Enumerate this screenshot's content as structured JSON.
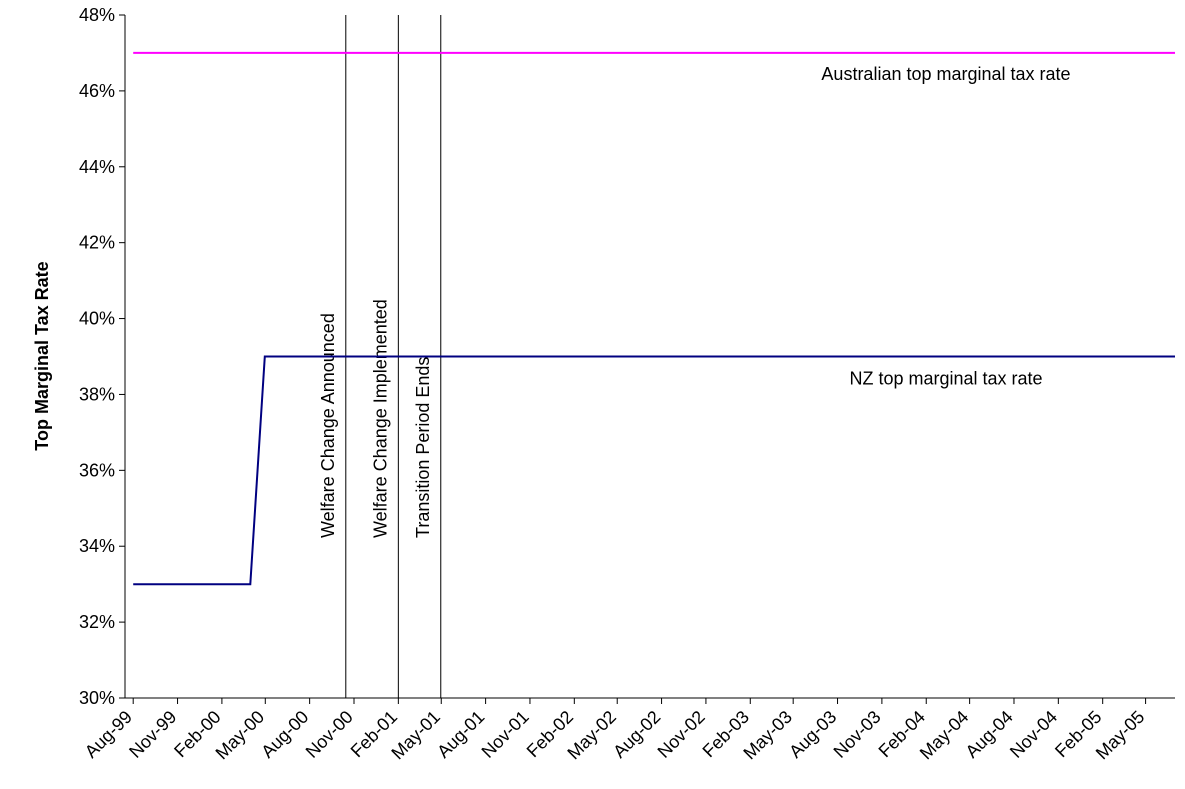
{
  "chart_data": {
    "type": "line",
    "ylabel": "Top Marginal Tax Rate",
    "xlabel": "",
    "title": "",
    "ylim": [
      30,
      48
    ],
    "y_ticks": [
      "30%",
      "32%",
      "34%",
      "36%",
      "38%",
      "40%",
      "42%",
      "44%",
      "46%",
      "48%"
    ],
    "y_tick_values": [
      30,
      32,
      34,
      36,
      38,
      40,
      42,
      44,
      46,
      48
    ],
    "x_ticks": [
      "Aug-99",
      "Nov-99",
      "Feb-00",
      "May-00",
      "Aug-00",
      "Nov-00",
      "Feb-01",
      "May-01",
      "Aug-01",
      "Nov-01",
      "Feb-02",
      "May-02",
      "Aug-02",
      "Nov-02",
      "Feb-03",
      "May-03",
      "Aug-03",
      "Nov-03",
      "Feb-04",
      "May-04",
      "Aug-04",
      "Nov-04",
      "Feb-05",
      "May-05"
    ],
    "x_range": [
      "1999-07-15",
      "2005-07-01"
    ],
    "grid": false,
    "series": [
      {
        "name": "Australian top marginal tax rate",
        "color": "#ff00ff",
        "points": [
          [
            "1999-08-01",
            47
          ],
          [
            "2005-07-01",
            47
          ]
        ]
      },
      {
        "name": "NZ top marginal tax rate",
        "color": "#000080",
        "points": [
          [
            "1999-08-01",
            33
          ],
          [
            "2000-03-31",
            33
          ],
          [
            "2000-04-30",
            39
          ],
          [
            "2005-07-01",
            39
          ]
        ]
      }
    ],
    "events": [
      {
        "label": "Welfare Change Announced",
        "date": "2000-10-15"
      },
      {
        "label": "Welfare Change Implemented",
        "date": "2001-02-01"
      },
      {
        "label": "Transition Period Ends",
        "date": "2001-04-30"
      }
    ]
  }
}
